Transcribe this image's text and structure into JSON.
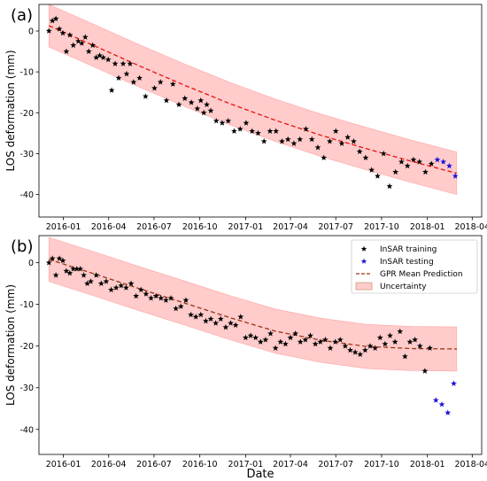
{
  "figure": {
    "xlabel": "Date"
  },
  "chart_data": [
    {
      "type": "scatter",
      "panel_label": "(a)",
      "ylabel": "LOS deformation (mm)",
      "xlabel": "",
      "x_ticks": [
        "2016-01",
        "2016-04",
        "2016-07",
        "2016-10",
        "2017-01",
        "2017-04",
        "2017-07",
        "2017-10",
        "2018-01",
        "2018-04"
      ],
      "y_ticks": [
        0,
        -10,
        -20,
        -30,
        -40
      ],
      "xlim": [
        "2015-11-13",
        "2018-04-20"
      ],
      "ylim": [
        -45.5,
        6.5
      ],
      "grid": false,
      "legend": false,
      "band_color": "#ff6b6b",
      "mean_color": "#e8120c",
      "training_color": "#000000",
      "testing_color": "#1a10d8",
      "training": {
        "x": [
          "2015-12-03",
          "2015-12-10",
          "2015-12-17",
          "2015-12-24",
          "2015-12-31",
          "2016-01-07",
          "2016-01-14",
          "2016-01-21",
          "2016-01-31",
          "2016-02-07",
          "2016-02-14",
          "2016-02-21",
          "2016-02-29",
          "2016-03-07",
          "2016-03-14",
          "2016-03-21",
          "2016-03-31",
          "2016-04-07",
          "2016-04-14",
          "2016-04-21",
          "2016-04-30",
          "2016-05-07",
          "2016-05-14",
          "2016-05-21",
          "2016-06-02",
          "2016-06-14",
          "2016-07-02",
          "2016-07-14",
          "2016-07-26",
          "2016-08-08",
          "2016-08-20",
          "2016-09-01",
          "2016-09-14",
          "2016-09-26",
          "2016-10-03",
          "2016-10-09",
          "2016-10-15",
          "2016-10-23",
          "2016-11-03",
          "2016-11-15",
          "2016-11-27",
          "2016-12-09",
          "2016-12-21",
          "2017-01-02",
          "2017-01-14",
          "2017-01-26",
          "2017-02-07",
          "2017-02-19",
          "2017-03-03",
          "2017-03-15",
          "2017-03-27",
          "2017-04-08",
          "2017-04-20",
          "2017-05-02",
          "2017-05-14",
          "2017-05-26",
          "2017-06-07",
          "2017-06-19",
          "2017-07-01",
          "2017-07-13",
          "2017-07-25",
          "2017-08-06",
          "2017-08-18",
          "2017-08-30",
          "2017-09-11",
          "2017-09-23",
          "2017-10-05",
          "2017-10-17",
          "2017-10-29",
          "2017-11-10",
          "2017-11-22",
          "2017-12-04",
          "2017-12-16",
          "2017-12-28",
          "2018-01-09"
        ],
        "y": [
          0.0,
          2.5,
          3.0,
          0.5,
          -0.5,
          -5.0,
          -1.0,
          -3.5,
          -2.5,
          -3.0,
          -1.5,
          -5.0,
          -3.5,
          -6.5,
          -6.0,
          -6.5,
          -7.0,
          -14.5,
          -8.0,
          -11.5,
          -8.0,
          -10.5,
          -8.0,
          -12.5,
          -11.5,
          -16.0,
          -14.0,
          -12.5,
          -17.0,
          -13.0,
          -18.0,
          -16.5,
          -17.5,
          -19.0,
          -17.0,
          -20.0,
          -18.0,
          -19.5,
          -22.0,
          -22.5,
          -22.0,
          -24.5,
          -24.0,
          -22.5,
          -24.5,
          -25.0,
          -27.0,
          -24.5,
          -24.5,
          -27.0,
          -26.5,
          -27.5,
          -26.5,
          -24.0,
          -26.5,
          -28.5,
          -31.0,
          -27.0,
          -24.5,
          -27.5,
          -26.0,
          -27.0,
          -29.5,
          -31.0,
          -34.0,
          -35.5,
          -30.0,
          -38.0,
          -34.5,
          -32.0,
          -33.0,
          -31.5,
          -32.0,
          -34.5,
          -32.5
        ]
      },
      "testing": {
        "x": [
          "2018-01-21",
          "2018-02-02",
          "2018-02-14",
          "2018-02-26"
        ],
        "y": [
          -31.5,
          -32.0,
          -33.0,
          -35.5
        ]
      },
      "mean": {
        "x": [
          "2015-12-03",
          "2016-03-01",
          "2016-06-01",
          "2016-09-01",
          "2016-12-01",
          "2017-03-01",
          "2017-06-01",
          "2017-09-01",
          "2017-12-01",
          "2018-03-01"
        ],
        "y": [
          1.3,
          -3.5,
          -8.5,
          -13.3,
          -17.8,
          -21.8,
          -25.5,
          -28.8,
          -31.9,
          -34.8
        ]
      },
      "band_halfwidth": 5.2
    },
    {
      "type": "scatter",
      "panel_label": "(b)",
      "ylabel": "LOS deformation (mm)",
      "xlabel": "Date",
      "x_ticks": [
        "2016-01",
        "2016-04",
        "2016-07",
        "2016-10",
        "2017-01",
        "2017-04",
        "2017-07",
        "2017-10",
        "2018-01",
        "2018-04"
      ],
      "y_ticks": [
        0,
        -10,
        -20,
        -30,
        -40
      ],
      "xlim": [
        "2015-11-13",
        "2018-04-20"
      ],
      "ylim": [
        -46.0,
        6.5
      ],
      "grid": false,
      "legend": true,
      "legend_position": "top-right",
      "legend_entries": [
        "InSAR training",
        "InSAR testing",
        "GPR Mean Prediction",
        "Uncertainty"
      ],
      "band_color": "#ff6b6b",
      "mean_color": "#9a3412",
      "training_color": "#000000",
      "testing_color": "#1a10d8",
      "training": {
        "x": [
          "2015-12-03",
          "2015-12-10",
          "2015-12-17",
          "2015-12-24",
          "2015-12-31",
          "2016-01-07",
          "2016-01-14",
          "2016-01-21",
          "2016-01-28",
          "2016-02-04",
          "2016-02-11",
          "2016-02-18",
          "2016-02-25",
          "2016-03-07",
          "2016-03-17",
          "2016-03-27",
          "2016-04-06",
          "2016-04-16",
          "2016-04-26",
          "2016-05-06",
          "2016-05-16",
          "2016-05-26",
          "2016-06-05",
          "2016-06-15",
          "2016-06-25",
          "2016-07-05",
          "2016-07-15",
          "2016-07-25",
          "2016-08-04",
          "2016-08-14",
          "2016-08-24",
          "2016-09-03",
          "2016-09-13",
          "2016-09-23",
          "2016-10-03",
          "2016-10-13",
          "2016-10-23",
          "2016-11-02",
          "2016-11-12",
          "2016-11-22",
          "2016-12-02",
          "2016-12-12",
          "2016-12-22",
          "2017-01-01",
          "2017-01-11",
          "2017-01-21",
          "2017-01-31",
          "2017-02-10",
          "2017-02-20",
          "2017-03-02",
          "2017-03-12",
          "2017-03-22",
          "2017-04-01",
          "2017-04-11",
          "2017-04-21",
          "2017-05-01",
          "2017-05-11",
          "2017-05-21",
          "2017-05-31",
          "2017-06-10",
          "2017-06-20",
          "2017-06-30",
          "2017-07-10",
          "2017-07-20",
          "2017-07-30",
          "2017-08-09",
          "2017-08-19",
          "2017-08-29",
          "2017-09-08",
          "2017-09-18",
          "2017-09-28",
          "2017-10-08",
          "2017-10-18",
          "2017-10-28",
          "2017-11-07",
          "2017-11-17",
          "2017-11-27",
          "2017-12-07",
          "2017-12-17",
          "2017-12-27",
          "2018-01-06"
        ],
        "y": [
          0.0,
          1.0,
          -3.0,
          1.0,
          0.5,
          -2.0,
          -2.5,
          -1.5,
          -1.5,
          -1.5,
          -3.0,
          -5.0,
          -4.5,
          -3.0,
          -5.0,
          -4.5,
          -6.5,
          -6.0,
          -5.5,
          -6.0,
          -5.0,
          -8.0,
          -6.5,
          -7.5,
          -8.5,
          -8.0,
          -8.5,
          -9.0,
          -8.5,
          -11.0,
          -10.5,
          -9.0,
          -12.5,
          -13.0,
          -12.5,
          -14.0,
          -13.5,
          -14.5,
          -13.5,
          -15.5,
          -14.5,
          -15.0,
          -13.0,
          -18.0,
          -17.5,
          -18.0,
          -19.0,
          -18.5,
          -17.0,
          -20.5,
          -19.0,
          -19.5,
          -18.0,
          -17.0,
          -19.0,
          -18.5,
          -17.5,
          -19.5,
          -19.0,
          -18.5,
          -20.5,
          -19.0,
          -18.5,
          -20.0,
          -21.0,
          -21.5,
          -22.0,
          -21.0,
          -20.0,
          -20.5,
          -18.0,
          -19.5,
          -17.5,
          -19.0,
          -16.5,
          -22.5,
          -19.0,
          -18.5,
          -20.0,
          -26.0,
          -20.5
        ]
      },
      "testing": {
        "x": [
          "2018-01-18",
          "2018-01-30",
          "2018-02-11",
          "2018-02-23"
        ],
        "y": [
          -33.0,
          -34.0,
          -36.0,
          -29.0
        ]
      },
      "mean": {
        "x": [
          "2015-12-03",
          "2016-03-01",
          "2016-06-01",
          "2016-09-01",
          "2016-12-01",
          "2017-03-01",
          "2017-06-01",
          "2017-09-01",
          "2017-12-01",
          "2018-03-01"
        ],
        "y": [
          0.8,
          -2.6,
          -6.2,
          -9.7,
          -13.2,
          -16.4,
          -18.6,
          -20.1,
          -20.6,
          -20.7
        ]
      },
      "band_halfwidth": 5.3
    }
  ]
}
